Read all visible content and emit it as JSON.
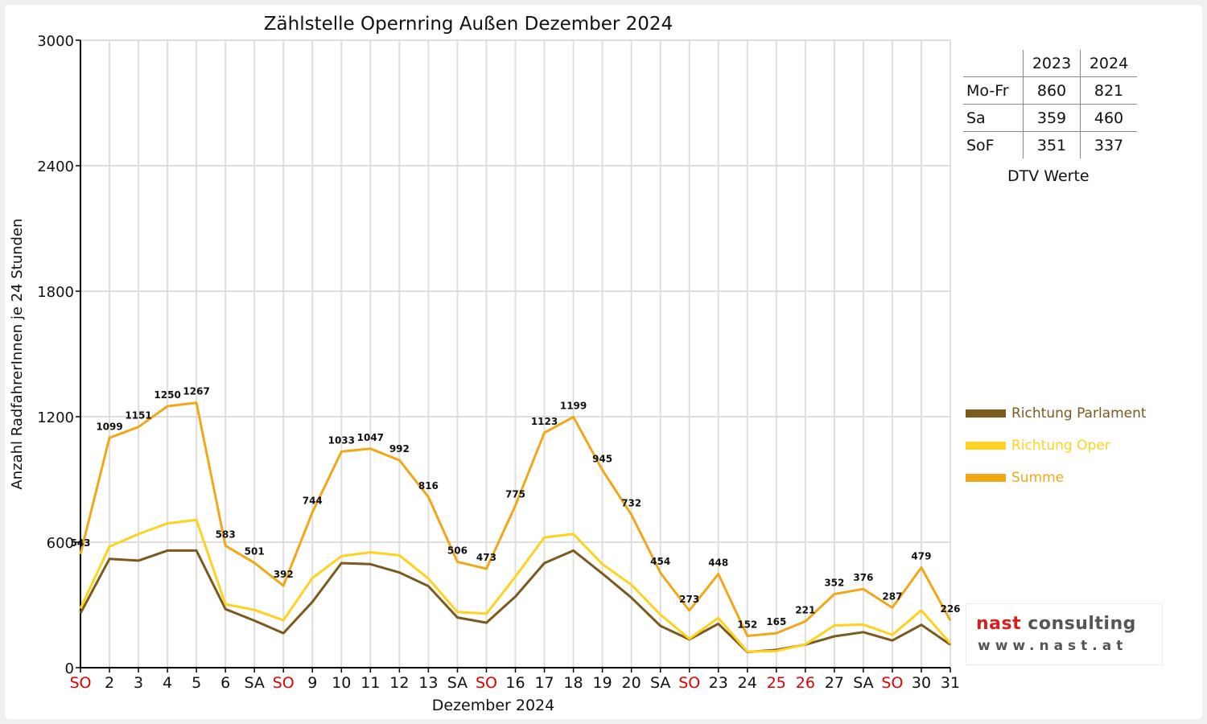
{
  "chart_data": {
    "type": "line",
    "title": "Zählstelle Opernring Außen Dezember 2024",
    "xlabel": "Dezember 2024",
    "ylabel": "Anzahl RadfahrerInnen je 24 Stunden",
    "ylim": [
      0,
      3000
    ],
    "yticks": [
      0,
      600,
      1200,
      1800,
      2400,
      3000
    ],
    "grid": true,
    "legend_position": "right",
    "categories": [
      "SO",
      "2",
      "3",
      "4",
      "5",
      "6",
      "SA",
      "SO",
      "9",
      "10",
      "11",
      "12",
      "13",
      "SA",
      "SO",
      "16",
      "17",
      "18",
      "19",
      "20",
      "SA",
      "SO",
      "23",
      "24",
      "25",
      "26",
      "27",
      "SA",
      "SO",
      "30",
      "31"
    ],
    "red_categories": [
      0,
      7,
      14,
      21,
      24,
      25,
      28
    ],
    "series": [
      {
        "name": "Richtung Parlament",
        "color": "#7a5a1e",
        "values": [
          260,
          520,
          512,
          560,
          560,
          280,
          225,
          165,
          315,
          500,
          495,
          455,
          390,
          240,
          215,
          340,
          500,
          560,
          450,
          335,
          200,
          135,
          210,
          75,
          85,
          110,
          150,
          170,
          130,
          205,
          110
        ]
      },
      {
        "name": "Richtung Oper",
        "color": "#ffd21f",
        "values": [
          283,
          579,
          639,
          690,
          707,
          303,
          276,
          227,
          429,
          533,
          552,
          537,
          426,
          266,
          258,
          435,
          623,
          639,
          495,
          397,
          254,
          138,
          238,
          77,
          80,
          111,
          202,
          206,
          157,
          274,
          116
        ]
      },
      {
        "name": "Summe",
        "color": "#f0a818",
        "values": [
          543,
          1099,
          1151,
          1250,
          1267,
          583,
          501,
          392,
          744,
          1033,
          1047,
          992,
          816,
          506,
          473,
          775,
          1123,
          1199,
          945,
          732,
          454,
          273,
          448,
          152,
          165,
          221,
          352,
          376,
          287,
          479,
          226
        ]
      }
    ],
    "labels": [
      "543",
      "1099",
      "1151",
      "1250",
      "1267",
      "583",
      "501",
      "392",
      "744",
      "1033",
      "1047",
      "992",
      "816",
      "506",
      "473",
      "775",
      "1123",
      "1199",
      "945",
      "732",
      "454",
      "273",
      "448",
      "152",
      "165",
      "221",
      "352",
      "376",
      "287",
      "479",
      "226"
    ]
  },
  "dtv": {
    "header": [
      "2023",
      "2024"
    ],
    "rows": [
      {
        "label": "Mo-Fr",
        "v2023": "860",
        "v2024": "821"
      },
      {
        "label": "Sa",
        "v2023": "359",
        "v2024": "460"
      },
      {
        "label": "SoF",
        "v2023": "351",
        "v2024": "337"
      }
    ],
    "caption": "DTV Werte"
  },
  "logo": {
    "name_a": "nast",
    "name_b": " consulting",
    "url": "www.nast.at"
  }
}
